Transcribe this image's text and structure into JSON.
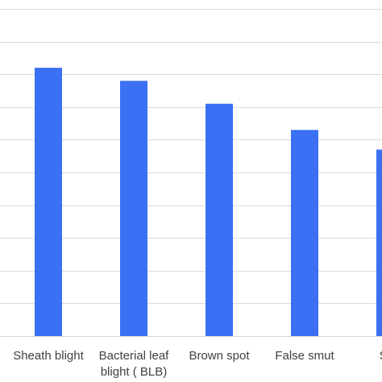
{
  "colors": {
    "bar": "#3b70f5",
    "grid": "#d9d9d9",
    "label": "#404040",
    "background": "#ffffff"
  },
  "chart_data": {
    "type": "bar",
    "title": "",
    "xlabel": "",
    "ylabel": "",
    "grid": true,
    "legend": "none",
    "ylim": [
      0,
      10
    ],
    "categories": [
      [
        "Sheath blight"
      ],
      [
        "Bacterial leaf",
        "blight ( BLB)"
      ],
      [
        "Brown spot"
      ],
      [
        "False smut"
      ],
      [
        "She"
      ]
    ],
    "series": [
      {
        "values": [
          8.2,
          7.8,
          7.1,
          6.3,
          5.7
        ]
      }
    ]
  }
}
